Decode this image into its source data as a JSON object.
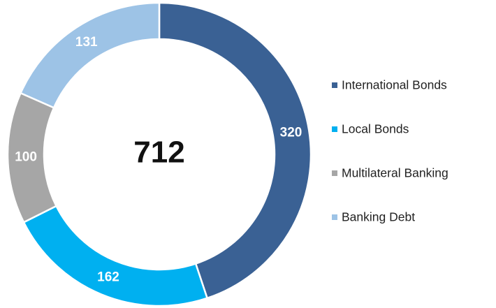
{
  "chart_data": {
    "type": "donut",
    "categories": [
      "International Bonds",
      "Local Bonds",
      "Multilateral Banking",
      "Banking Debt"
    ],
    "values": [
      320,
      162,
      100,
      131
    ],
    "colors": [
      "#3a6194",
      "#00b0f0",
      "#a6a6a6",
      "#9dc3e6"
    ],
    "center_label": 712,
    "legend": "right"
  }
}
